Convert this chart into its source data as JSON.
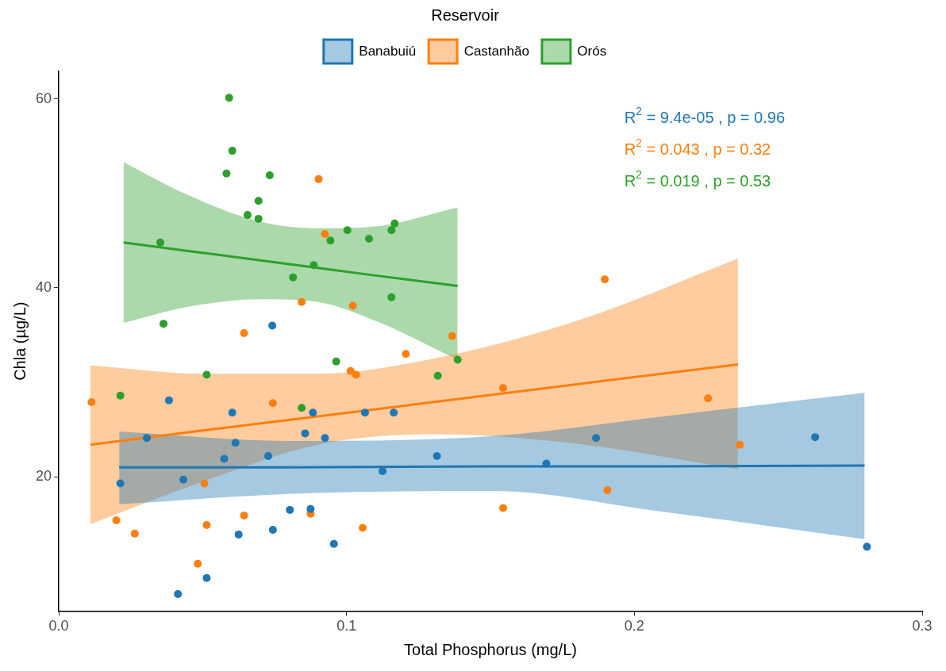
{
  "chart_data": {
    "type": "scatter",
    "xlabel": "Total Phosphorus (mg/L)",
    "ylabel": "Chla (µg/L)",
    "legend_title": "Reservoir",
    "legend": "top",
    "grid": false,
    "marker": "circle",
    "xlim": [
      0,
      0.3
    ],
    "xticks": [
      {
        "value": 0,
        "label": "0.0"
      },
      0.1,
      0.2,
      0.3
    ],
    "ylim": [
      5.8,
      62.9
    ],
    "yticks": [
      20,
      40,
      60
    ],
    "series": [
      {
        "name": "Banabuiú",
        "color": "#1f77b4",
        "x": [
          0.0383,
          0.0603,
          0.0614,
          0.0575,
          0.0433,
          0.0214,
          0.0306,
          0.0728,
          0.0856,
          0.0883,
          0.0925,
          0.1064,
          0.1164,
          0.0742,
          0.1125,
          0.1314,
          0.1694,
          0.1867,
          0.2628,
          0.2808,
          0.0803,
          0.0875,
          0.0625,
          0.0744,
          0.0956,
          0.0514,
          0.0414
        ],
        "values": [
          28.1,
          26.8,
          23.6,
          21.9,
          19.7,
          19.3,
          24.1,
          22.2,
          24.6,
          26.8,
          24.1,
          26.8,
          26.8,
          36.0,
          20.6,
          22.2,
          21.4,
          24.1,
          24.2,
          12.6,
          16.5,
          16.6,
          13.9,
          14.4,
          12.9,
          9.3,
          7.6
        ]
      },
      {
        "name": "Castanhão",
        "color": "#ff7f0e",
        "x": [
          0.0114,
          0.02,
          0.0264,
          0.0506,
          0.0514,
          0.0483,
          0.0644,
          0.0744,
          0.0644,
          0.0844,
          0.0903,
          0.0925,
          0.0875,
          0.1014,
          0.1033,
          0.1022,
          0.1056,
          0.1206,
          0.1367,
          0.1544,
          0.1544,
          0.1897,
          0.1906,
          0.2256,
          0.2367
        ],
        "values": [
          27.9,
          15.4,
          14.0,
          19.3,
          14.9,
          10.8,
          15.9,
          27.8,
          35.2,
          38.5,
          51.5,
          45.7,
          16.1,
          31.2,
          30.8,
          38.1,
          14.6,
          33.0,
          34.9,
          29.4,
          16.7,
          40.9,
          18.6,
          28.3,
          23.4
        ]
      },
      {
        "name": "Orós",
        "color": "#2ca02c",
        "x": [
          0.0592,
          0.0603,
          0.0583,
          0.0733,
          0.0694,
          0.0656,
          0.0694,
          0.0353,
          0.1003,
          0.0944,
          0.1078,
          0.1156,
          0.1167,
          0.0886,
          0.0814,
          0.1156,
          0.0364,
          0.0964,
          0.0214,
          0.0514,
          0.0844,
          0.1317,
          0.1386
        ],
        "values": [
          60.1,
          54.5,
          52.1,
          51.9,
          49.2,
          47.7,
          47.3,
          44.8,
          46.1,
          45.0,
          45.2,
          46.1,
          46.8,
          42.4,
          41.1,
          39.0,
          36.2,
          32.2,
          28.6,
          30.8,
          27.3,
          30.7,
          32.4
        ]
      },
      {
        "type": "line",
        "marker": "none",
        "color": "#1f77b4",
        "x": [
          0.021,
          0.08,
          0.15,
          0.21,
          0.28
        ],
        "values": [
          21.0,
          21.0,
          21.1,
          21.1,
          21.2
        ],
        "lower": [
          17.1,
          18.2,
          18.5,
          16.3,
          13.4
        ],
        "upper": [
          24.8,
          23.8,
          24.3,
          26.4,
          28.9
        ]
      },
      {
        "type": "line",
        "marker": "none",
        "color": "#ff7f0e",
        "x": [
          0.011,
          0.05,
          0.09,
          0.13,
          0.18,
          0.236
        ],
        "values": [
          23.4,
          24.9,
          26.4,
          27.9,
          29.8,
          31.9
        ],
        "lower": [
          15.0,
          19.5,
          23.4,
          24.5,
          23.5,
          20.8
        ],
        "upper": [
          31.8,
          30.9,
          30.9,
          32.5,
          36.5,
          43.1
        ]
      },
      {
        "type": "line",
        "marker": "none",
        "color": "#2ca02c",
        "x": [
          0.0225,
          0.045,
          0.07,
          0.09,
          0.11,
          0.1386
        ],
        "values": [
          44.8,
          43.9,
          42.9,
          42.1,
          41.3,
          40.2
        ],
        "lower": [
          36.3,
          38.0,
          38.8,
          38.5,
          36.5,
          32.4
        ],
        "upper": [
          53.3,
          49.8,
          47.0,
          46.3,
          46.5,
          48.5
        ]
      }
    ],
    "annotations": [
      "R$^{2}$ = 9.4e-05 , p = 0.96",
      "R$^{2}$ = 0.043 , p = 0.32",
      "R$^{2}$ = 0.019 , p = 0.53"
    ]
  }
}
